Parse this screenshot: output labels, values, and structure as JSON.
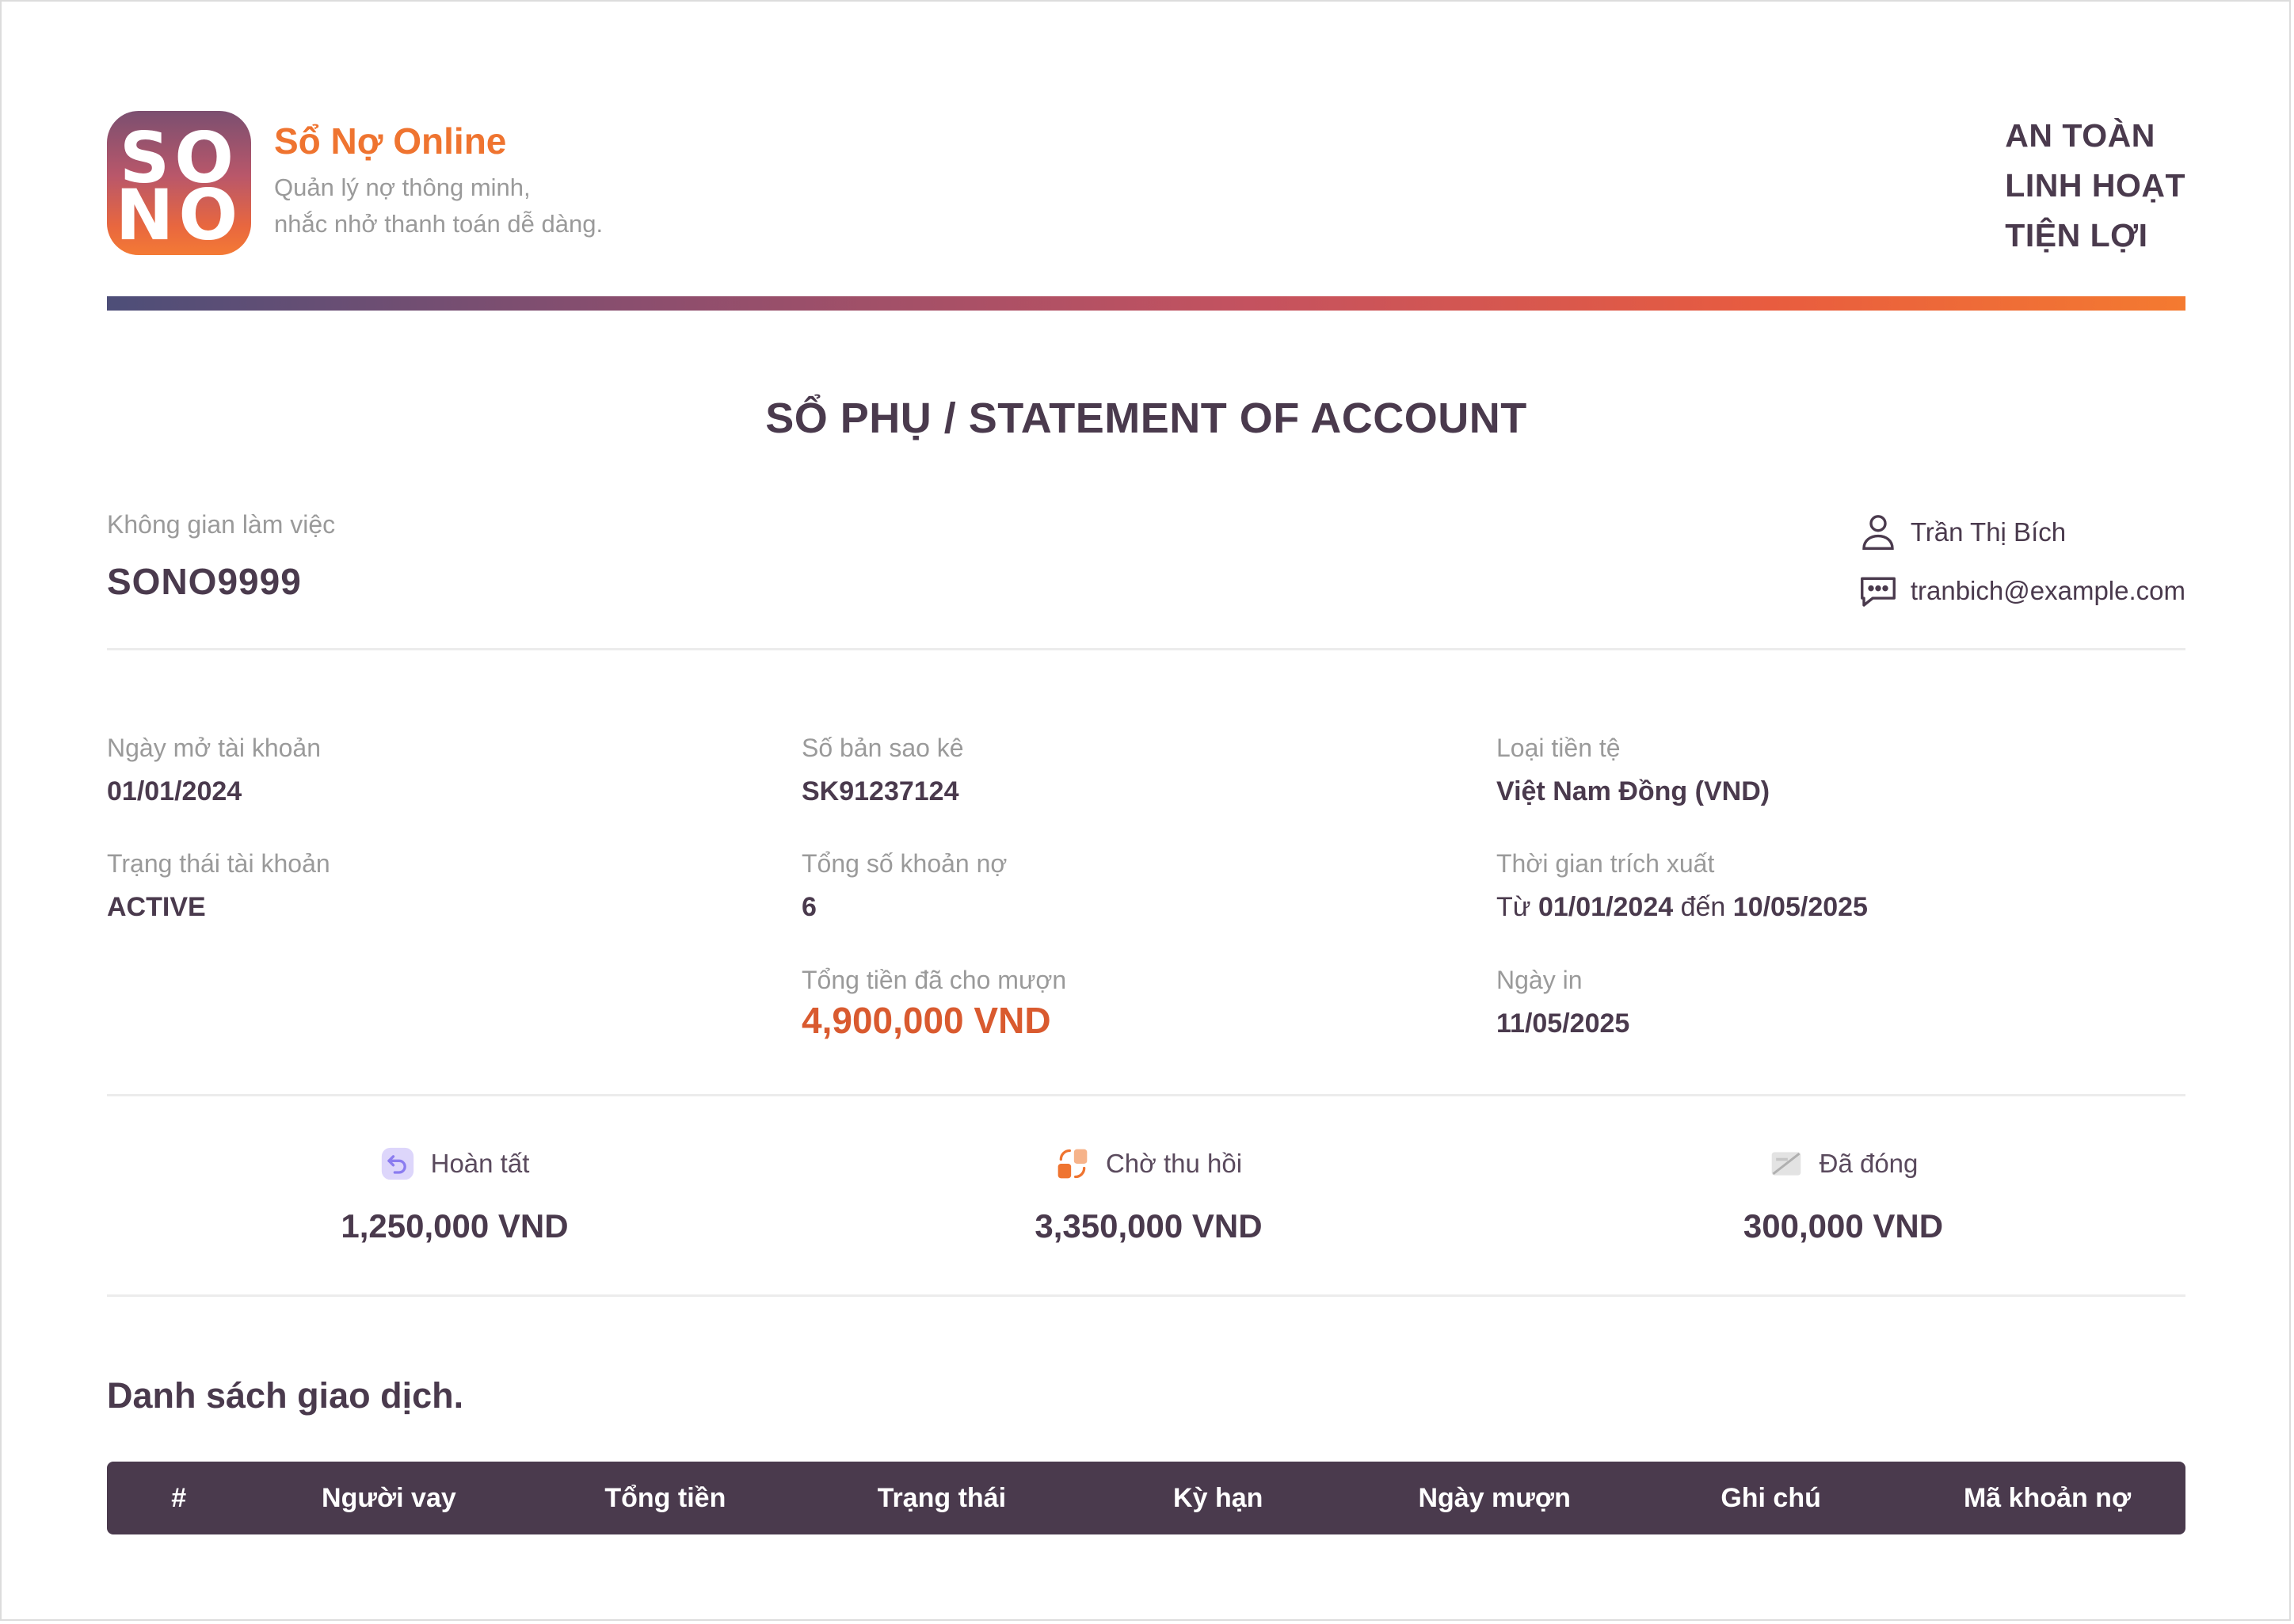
{
  "brand": {
    "logo_top": "SO",
    "logo_bottom": "NO",
    "name": "Sổ Nợ Online",
    "tagline_line1": "Quản lý nợ thông minh,",
    "tagline_line2": "nhắc nhở thanh toán dễ dàng."
  },
  "slogan": [
    "AN TOÀN",
    "LINH HOẠT",
    "TIỆN LỢI"
  ],
  "title": "SỔ PHỤ / STATEMENT OF ACCOUNT",
  "workspace": {
    "label": "Không gian làm việc",
    "value": "SONO9999"
  },
  "user": {
    "name": "Trần Thị Bích",
    "email": "tranbich@example.com"
  },
  "info": {
    "open_date": {
      "label": "Ngày mở tài khoản",
      "value": "01/01/2024"
    },
    "status": {
      "label": "Trạng thái tài khoản",
      "value": "ACTIVE"
    },
    "statement_no": {
      "label": "Số bản sao kê",
      "value": "SK91237124"
    },
    "total_debts": {
      "label": "Tổng số khoản nợ",
      "value": "6"
    },
    "total_lent": {
      "label": "Tổng tiền đã cho mượn",
      "value": "4,900,000 VND"
    },
    "currency": {
      "label": "Loại tiền tệ",
      "value": "Việt Nam Đồng (VND)"
    },
    "period": {
      "label": "Thời gian trích xuất",
      "prefix": "Từ",
      "from": "01/01/2024",
      "mid": "đến",
      "to": "10/05/2025"
    },
    "print_date": {
      "label": "Ngày in",
      "value": "11/05/2025"
    }
  },
  "summary": [
    {
      "label": "Hoàn tất",
      "value": "1,250,000 VND",
      "icon": "return-arrow-icon",
      "color": "#8b7cf0"
    },
    {
      "label": "Chờ thu hồi",
      "value": "3,350,000 VND",
      "icon": "exchange-icon",
      "color": "#ef7430"
    },
    {
      "label": "Đã đóng",
      "value": "300,000 VND",
      "icon": "closed-card-icon",
      "color": "#b0b0b0"
    }
  ],
  "transactions": {
    "title": "Danh sách giao dịch.",
    "columns": [
      "#",
      "Người vay",
      "Tổng tiền",
      "Trạng thái",
      "Kỳ hạn",
      "Ngày mượn",
      "Ghi chú",
      "Mã khoản nợ"
    ]
  }
}
